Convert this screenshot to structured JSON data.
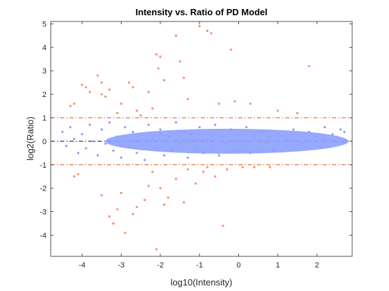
{
  "chart_data": {
    "type": "scatter",
    "title": "Intensity vs. Ratio of PD Model",
    "xlabel": "log10(Intensity)",
    "ylabel": "log2(Ratio)",
    "xlim": [
      -4.8,
      2.9
    ],
    "ylim": [
      -4.9,
      5.1
    ],
    "xticks": [
      -4,
      -3,
      -2,
      -1,
      0,
      1,
      2
    ],
    "yticks": [
      -4,
      -3,
      -2,
      -1,
      0,
      1,
      2,
      3,
      4,
      5
    ],
    "xtick_labels": [
      "-4",
      "-3",
      "-2",
      "-1",
      "0",
      "1",
      "2"
    ],
    "ytick_labels": [
      "-4",
      "-3",
      "-2",
      "-1",
      "0",
      "1",
      "2",
      "3",
      "4",
      "5"
    ],
    "grid": false,
    "legend": "none",
    "reference_lines": [
      {
        "y": 1,
        "style": "dash-dot",
        "color": "#d95319"
      },
      {
        "y": 0,
        "style": "dash-dot",
        "color": "#000000"
      },
      {
        "y": -1,
        "style": "dash-dot",
        "color": "#d95319"
      }
    ],
    "colors": {
      "within_threshold": "#8c9eff",
      "outside_threshold": "#f4956a"
    },
    "series": [
      {
        "color": "#8c9eff",
        "note_density": "dense cloud centered near y=0 spanning x from -4.6 to 2.7",
        "points": [
          [
            -4.5,
            0.4
          ],
          [
            -4.4,
            -0.2
          ],
          [
            -4.3,
            0.6
          ],
          [
            -4.2,
            0.1
          ],
          [
            -4.1,
            -0.5
          ],
          [
            -4.0,
            0.3
          ],
          [
            -3.9,
            -0.3
          ],
          [
            -3.8,
            0.7
          ],
          [
            -3.7,
            0.0
          ],
          [
            -3.6,
            -0.6
          ],
          [
            -3.5,
            0.5
          ],
          [
            -3.4,
            -0.1
          ],
          [
            -3.3,
            0.8
          ],
          [
            -3.2,
            -0.4
          ],
          [
            -3.1,
            0.2
          ],
          [
            -3.0,
            -0.7
          ],
          [
            -2.9,
            0.6
          ],
          [
            -2.8,
            -0.2
          ],
          [
            -2.7,
            0.4
          ],
          [
            -2.6,
            -0.5
          ],
          [
            -2.5,
            0.3
          ],
          [
            -2.4,
            -0.8
          ],
          [
            -2.3,
            0.7
          ],
          [
            -2.2,
            0.1
          ],
          [
            -2.1,
            -0.3
          ],
          [
            -2.0,
            0.5
          ],
          [
            -1.9,
            -0.6
          ],
          [
            -1.8,
            0.2
          ],
          [
            -1.7,
            -0.4
          ],
          [
            -1.6,
            0.8
          ],
          [
            -1.5,
            -0.1
          ],
          [
            -1.4,
            0.4
          ],
          [
            -1.3,
            -0.7
          ],
          [
            -1.2,
            0.3
          ],
          [
            -1.1,
            -0.2
          ],
          [
            -1.0,
            0.6
          ],
          [
            -0.9,
            -0.5
          ],
          [
            -0.8,
            0.1
          ],
          [
            -0.7,
            -0.3
          ],
          [
            -0.6,
            0.7
          ],
          [
            -0.5,
            -0.6
          ],
          [
            -0.4,
            0.2
          ],
          [
            -0.3,
            -0.1
          ],
          [
            -0.2,
            0.5
          ],
          [
            -0.1,
            -0.4
          ],
          [
            0.0,
            0.3
          ],
          [
            0.1,
            -0.2
          ],
          [
            0.2,
            0.6
          ],
          [
            0.3,
            -0.5
          ],
          [
            0.4,
            0.1
          ],
          [
            0.5,
            -0.3
          ],
          [
            0.6,
            0.4
          ],
          [
            0.7,
            -0.1
          ],
          [
            0.8,
            0.2
          ],
          [
            0.9,
            -0.4
          ],
          [
            1.0,
            0.3
          ],
          [
            1.2,
            0.1
          ],
          [
            1.4,
            0.5
          ],
          [
            1.6,
            -0.1
          ],
          [
            1.8,
            0.4
          ],
          [
            2.0,
            0.2
          ],
          [
            2.2,
            0.6
          ],
          [
            2.4,
            0.3
          ],
          [
            2.6,
            0.5
          ],
          [
            2.7,
            0.4
          ]
        ]
      },
      {
        "color": "#f4956a",
        "points": [
          [
            -4.3,
            1.5
          ],
          [
            -4.2,
            1.6
          ],
          [
            -4.0,
            2.4
          ],
          [
            -3.9,
            2.3
          ],
          [
            -3.8,
            2.1
          ],
          [
            -3.6,
            2.8
          ],
          [
            -3.5,
            2.5
          ],
          [
            -3.5,
            2.0
          ],
          [
            -3.4,
            1.9
          ],
          [
            -3.3,
            2.2
          ],
          [
            -3.1,
            1.2
          ],
          [
            -3.0,
            1.6
          ],
          [
            -2.8,
            2.5
          ],
          [
            -2.7,
            2.3
          ],
          [
            -2.6,
            1.3
          ],
          [
            -2.5,
            1.1
          ],
          [
            -2.3,
            2.1
          ],
          [
            -2.2,
            1.4
          ],
          [
            -2.1,
            3.7
          ],
          [
            -2.0,
            3.6
          ],
          [
            -2.05,
            3.1
          ],
          [
            -1.9,
            2.6
          ],
          [
            -1.6,
            4.5
          ],
          [
            -1.5,
            3.4
          ],
          [
            -1.4,
            2.7
          ],
          [
            -1.3,
            1.8
          ],
          [
            -1.0,
            4.9
          ],
          [
            -0.8,
            4.7
          ],
          [
            -0.7,
            4.6
          ],
          [
            -0.5,
            1.6
          ],
          [
            -0.2,
            3.9
          ],
          [
            -0.1,
            1.7
          ],
          [
            0.3,
            1.6
          ],
          [
            1.0,
            1.3
          ],
          [
            1.5,
            1.2
          ],
          [
            1.8,
            3.2
          ],
          [
            -4.2,
            -1.5
          ],
          [
            -4.1,
            -1.4
          ],
          [
            -3.5,
            -2.3
          ],
          [
            -3.3,
            -3.2
          ],
          [
            -3.2,
            -3.5
          ],
          [
            -3.1,
            -2.9
          ],
          [
            -3.0,
            -2.2
          ],
          [
            -2.9,
            -3.9
          ],
          [
            -2.7,
            -3.1
          ],
          [
            -2.6,
            -2.8
          ],
          [
            -2.4,
            -2.5
          ],
          [
            -2.3,
            -1.9
          ],
          [
            -2.2,
            -1.3
          ],
          [
            -2.1,
            -4.6
          ],
          [
            -2.0,
            -2.0
          ],
          [
            -1.9,
            -2.7
          ],
          [
            -1.8,
            -2.4
          ],
          [
            -1.6,
            -1.6
          ],
          [
            -1.4,
            -2.6
          ],
          [
            -1.3,
            -1.2
          ],
          [
            -1.1,
            -1.8
          ],
          [
            -0.9,
            -1.3
          ],
          [
            -0.8,
            -1.1
          ],
          [
            -0.6,
            -1.5
          ],
          [
            -0.4,
            -3.6
          ],
          [
            -0.3,
            -1.2
          ],
          [
            0.1,
            -1.1
          ],
          [
            0.4,
            -1.1
          ],
          [
            0.8,
            -1.1
          ]
        ]
      }
    ]
  }
}
